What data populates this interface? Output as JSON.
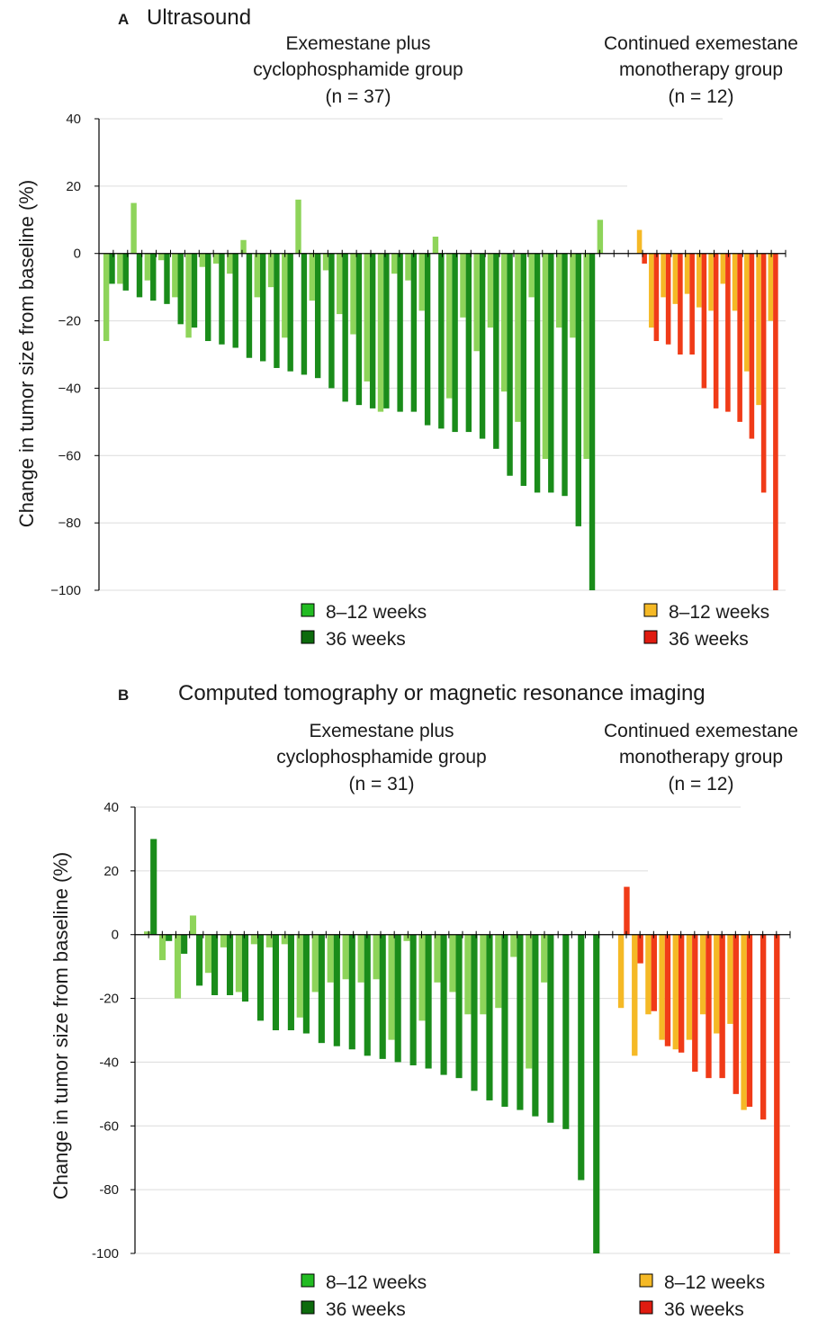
{
  "chart_data": [
    {
      "type": "bar",
      "panel_label": "A",
      "title": "Ultrasound",
      "ylabel": "Change in tumor size from baseline (%)",
      "ylim": [
        -100,
        40
      ],
      "yticks": [
        "40",
        "20",
        "0",
        "−20",
        "−40",
        "−60",
        "−80",
        "−100"
      ],
      "ytick_values": [
        40,
        20,
        0,
        -20,
        -40,
        -60,
        -80,
        -100
      ],
      "groups": [
        {
          "line1": "Exemestane plus",
          "line2": "cyclophosphamide group",
          "n_label": "(n = 37)",
          "series": [
            {
              "name": "8–12 weeks",
              "color": "#8ed45a",
              "values": [
                -26,
                -9,
                15,
                -8,
                -2,
                -13,
                -25,
                -4,
                -3,
                -6,
                4,
                -13,
                -10,
                -25,
                16,
                -14,
                -5,
                -18,
                -24,
                -38,
                -47,
                -6,
                -8,
                -17,
                5,
                -43,
                -19,
                -29,
                -22,
                -41,
                -50,
                -13,
                -61,
                -22,
                -25,
                -61,
                10
              ]
            },
            {
              "name": "36 weeks",
              "color": "#1a8c1a",
              "values": [
                -9,
                -11,
                -13,
                -14,
                -15,
                -21,
                -22,
                -26,
                -27,
                -28,
                -31,
                -32,
                -34,
                -35,
                -36,
                -37,
                -40,
                -44,
                -45,
                -46,
                -46,
                -47,
                -47,
                -51,
                -52,
                -53,
                -53,
                -55,
                -58,
                -66,
                -69,
                -71,
                -71,
                -72,
                -81,
                -100
              ]
            }
          ]
        },
        {
          "line1": "Continued exemestane",
          "line2": "monotherapy group",
          "n_label": "(n = 12)",
          "series": [
            {
              "name": "8–12 weeks",
              "color": "#f5b926",
              "values": [
                7,
                -22,
                -13,
                -15,
                -12,
                -16,
                -17,
                -9,
                -17,
                -35,
                -45,
                -20
              ]
            },
            {
              "name": "36 weeks",
              "color": "#f03b18",
              "values": [
                -3,
                -26,
                -27,
                -30,
                -30,
                -40,
                -46,
                -47,
                -50,
                -55,
                -71,
                -100
              ]
            }
          ]
        }
      ],
      "legend": [
        {
          "label": "8–12 weeks",
          "color": "#22bb22"
        },
        {
          "label": "36 weeks",
          "color": "#0d6b0d"
        },
        {
          "label": "8–12 weeks",
          "color": "#f5b926"
        },
        {
          "label": "36 weeks",
          "color": "#e01b10"
        }
      ]
    },
    {
      "type": "bar",
      "panel_label": "B",
      "title": "Computed tomography or magnetic resonance imaging",
      "ylabel": "Change in tumor size from baseline (%)",
      "ylim": [
        -100,
        40
      ],
      "yticks": [
        "40",
        "20",
        "0",
        "-20",
        "-40",
        "-60",
        "-80",
        "-100"
      ],
      "ytick_values": [
        40,
        20,
        0,
        -20,
        -40,
        -60,
        -80,
        -100
      ],
      "groups": [
        {
          "line1": "Exemestane plus",
          "line2": "cyclophosphamide group",
          "n_label": "(n = 31)",
          "series": [
            {
              "name": "8–12 weeks",
              "color": "#8ed45a",
              "values": [
                1,
                -8,
                -20,
                6,
                -12,
                -4,
                -18,
                -3,
                -4,
                -3,
                -26,
                -18,
                -15,
                -14,
                -15,
                -14,
                -33,
                -2,
                -27,
                -15,
                -18,
                -25,
                -25,
                -23,
                -7,
                -42,
                -15
              ]
            },
            {
              "name": "36 weeks",
              "color": "#1a8c1a",
              "values": [
                30,
                -2,
                -6,
                -16,
                -19,
                -19,
                -21,
                -27,
                -30,
                -30,
                -31,
                -34,
                -35,
                -36,
                -38,
                -39,
                -40,
                -41,
                -42,
                -44,
                -45,
                -49,
                -52,
                -54,
                -55,
                -57,
                -59,
                -61,
                -77,
                -100
              ]
            }
          ]
        },
        {
          "line1": "Continued exemestane",
          "line2": "monotherapy group",
          "n_label": "(n = 12)",
          "series": [
            {
              "name": "8–12 weeks",
              "color": "#f5b926",
              "values": [
                -23,
                -38,
                -25,
                -33,
                -36,
                -33,
                -25,
                -31,
                -28,
                -55
              ]
            },
            {
              "name": "36 weeks",
              "color": "#f03b18",
              "values": [
                15,
                -9,
                -24,
                -35,
                -37,
                -43,
                -45,
                -45,
                -50,
                -54,
                -58,
                -100
              ]
            }
          ]
        }
      ],
      "legend": [
        {
          "label": "8–12 weeks",
          "color": "#22bb22"
        },
        {
          "label": "36 weeks",
          "color": "#0d6b0d"
        },
        {
          "label": "8–12 weeks",
          "color": "#f5b926"
        },
        {
          "label": "36 weeks",
          "color": "#e01b10"
        }
      ]
    }
  ]
}
